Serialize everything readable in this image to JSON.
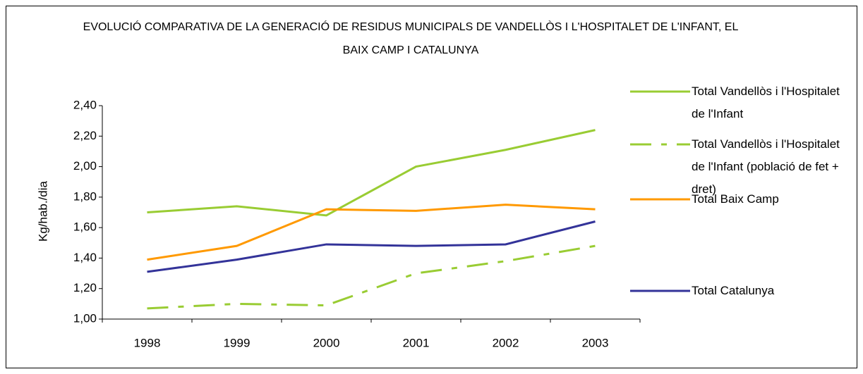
{
  "chart_data": {
    "type": "line",
    "title": "EVOLUCIÓ COMPARATIVA DE LA GENERACIÓ DE RESIDUS MUNICIPALS DE VANDELLÒS I L'HOSPITALET DE L'INFANT, EL BAIX CAMP I CATALUNYA",
    "y_label": "Kg/hab./dia",
    "categories": [
      "1998",
      "1999",
      "2000",
      "2001",
      "2002",
      "2003"
    ],
    "series": [
      {
        "name": "Total Vandellòs i l'Hospitalet de l'Infant",
        "color": "#99cc33",
        "dash": "solid",
        "values": [
          1.7,
          1.74,
          1.68,
          2.0,
          2.11,
          2.24
        ]
      },
      {
        "name": "Total Vandellòs i l'Hospitalet de l'Infant (població de fet + dret)",
        "color": "#99cc33",
        "dash": "dashdot",
        "values": [
          1.07,
          1.1,
          1.09,
          1.3,
          1.38,
          1.48
        ]
      },
      {
        "name": "Total Baix Camp",
        "color": "#ff9900",
        "dash": "solid",
        "values": [
          1.39,
          1.48,
          1.72,
          1.71,
          1.75,
          1.72
        ]
      },
      {
        "name": "Total Catalunya",
        "color": "#333399",
        "dash": "solid",
        "values": [
          1.31,
          1.39,
          1.49,
          1.48,
          1.49,
          1.64
        ]
      }
    ],
    "ylim": [
      1.0,
      2.4
    ],
    "yticks": [
      {
        "value": 1.0,
        "label": "1,00"
      },
      {
        "value": 1.2,
        "label": "1,20"
      },
      {
        "value": 1.4,
        "label": "1,40"
      },
      {
        "value": 1.6,
        "label": "1,60"
      },
      {
        "value": 1.8,
        "label": "1,80"
      },
      {
        "value": 2.0,
        "label": "2,00"
      },
      {
        "value": 2.2,
        "label": "2,20"
      },
      {
        "value": 2.4,
        "label": "2,40"
      }
    ],
    "grid": false,
    "legend": "right"
  }
}
